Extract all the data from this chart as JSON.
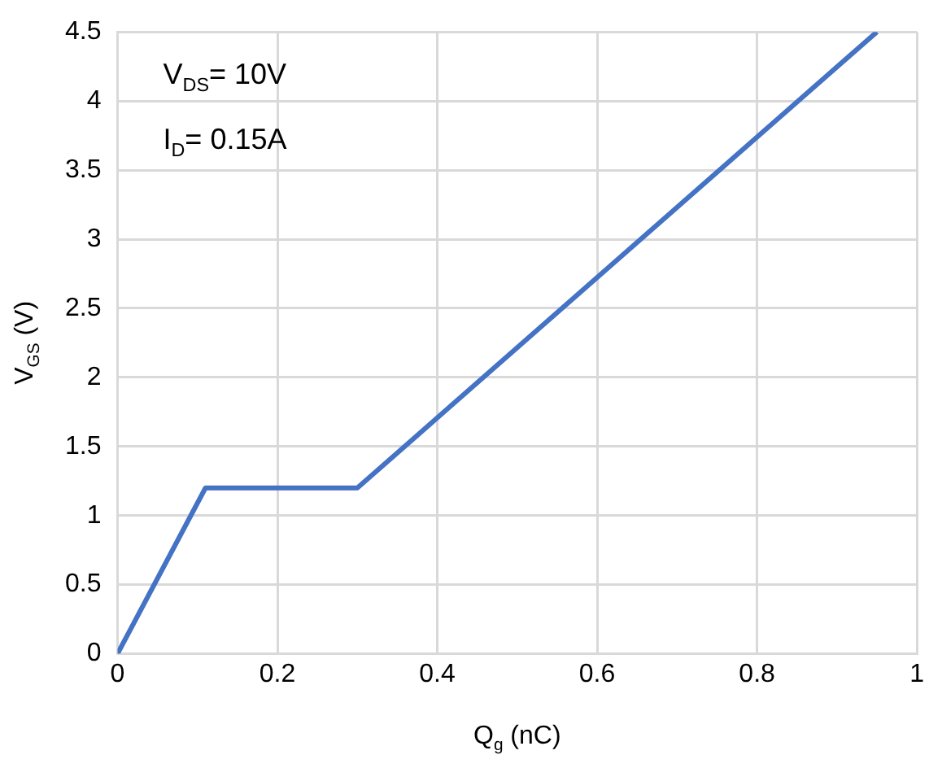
{
  "chart_data": {
    "type": "line",
    "xlabel": "Q$_{g}$ (nC)",
    "ylabel": "V$_{GS}$ (V)",
    "annotations": [
      "V$_{DS}$= 10V",
      "I$_{D}$= 0.15A"
    ],
    "x": [
      0,
      0.11,
      0.3,
      0.95
    ],
    "series": [
      {
        "color": "#4472c4",
        "values": [
          0,
          1.2,
          1.2,
          4.5
        ]
      }
    ],
    "xlim": [
      0,
      1
    ],
    "xticks": [
      0,
      0.2,
      0.4,
      0.6,
      0.8,
      1
    ],
    "ylim": [
      0,
      4.5
    ],
    "yticks": [
      0,
      0.5,
      1,
      1.5,
      2,
      2.5,
      3,
      3.5,
      4,
      4.5
    ],
    "grid": true,
    "legend": false,
    "marker": "none",
    "line_style": "solid"
  }
}
